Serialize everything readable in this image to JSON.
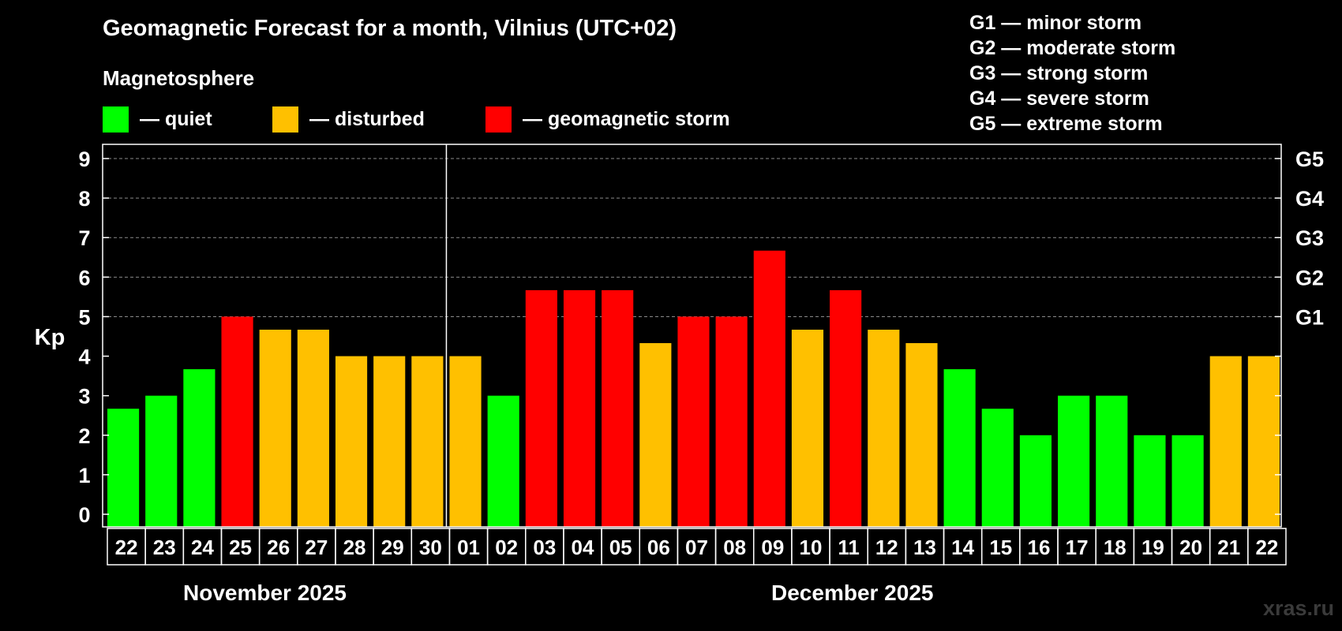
{
  "chart_data": {
    "type": "bar",
    "title": "Geomagnetic Forecast for a month, Vilnius (UTC+02)",
    "subtitle": "Magnetosphere",
    "ylabel": "Kp",
    "ylim": [
      0,
      9
    ],
    "yticks": [
      "0",
      "1",
      "2",
      "3",
      "4",
      "5",
      "6",
      "7",
      "8",
      "9"
    ],
    "right_ticks": [
      {
        "value": 5,
        "label": "G1"
      },
      {
        "value": 6,
        "label": "G2"
      },
      {
        "value": 7,
        "label": "G3"
      },
      {
        "value": 8,
        "label": "G4"
      },
      {
        "value": 9,
        "label": "G5"
      }
    ],
    "legend": [
      {
        "label": "— quiet",
        "color": "#00ff00"
      },
      {
        "label": "— disturbed",
        "color": "#ffc000"
      },
      {
        "label": "— geomagnetic storm",
        "color": "#ff0000"
      }
    ],
    "storm_scale": [
      "G1 — minor storm",
      "G2 — moderate storm",
      "G3 — strong storm",
      "G4 — severe storm",
      "G5 — extreme storm"
    ],
    "months": [
      "November 2025",
      "December 2025"
    ],
    "month_boundary_after_index": 8,
    "categories": [
      "22",
      "23",
      "24",
      "25",
      "26",
      "27",
      "28",
      "29",
      "30",
      "01",
      "02",
      "03",
      "04",
      "05",
      "06",
      "07",
      "08",
      "09",
      "10",
      "11",
      "12",
      "13",
      "14",
      "15",
      "16",
      "17",
      "18",
      "19",
      "20",
      "21",
      "22"
    ],
    "values": [
      2.67,
      3,
      3.67,
      5,
      4.67,
      4.67,
      4,
      4,
      4,
      4,
      3,
      5.67,
      5.67,
      5.67,
      4.33,
      5,
      5,
      6.67,
      4.67,
      5.67,
      4.67,
      4.33,
      3.67,
      2.67,
      2,
      3,
      3,
      2,
      2,
      4,
      4
    ],
    "levels": [
      "quiet",
      "quiet",
      "quiet",
      "storm",
      "disturbed",
      "disturbed",
      "disturbed",
      "disturbed",
      "disturbed",
      "disturbed",
      "quiet",
      "storm",
      "storm",
      "storm",
      "disturbed",
      "storm",
      "storm",
      "storm",
      "disturbed",
      "storm",
      "disturbed",
      "disturbed",
      "quiet",
      "quiet",
      "quiet",
      "quiet",
      "quiet",
      "quiet",
      "quiet",
      "disturbed",
      "disturbed"
    ],
    "level_colors": {
      "quiet": "#00ff00",
      "disturbed": "#ffc000",
      "storm": "#ff0000"
    }
  },
  "watermark": "xras.ru"
}
